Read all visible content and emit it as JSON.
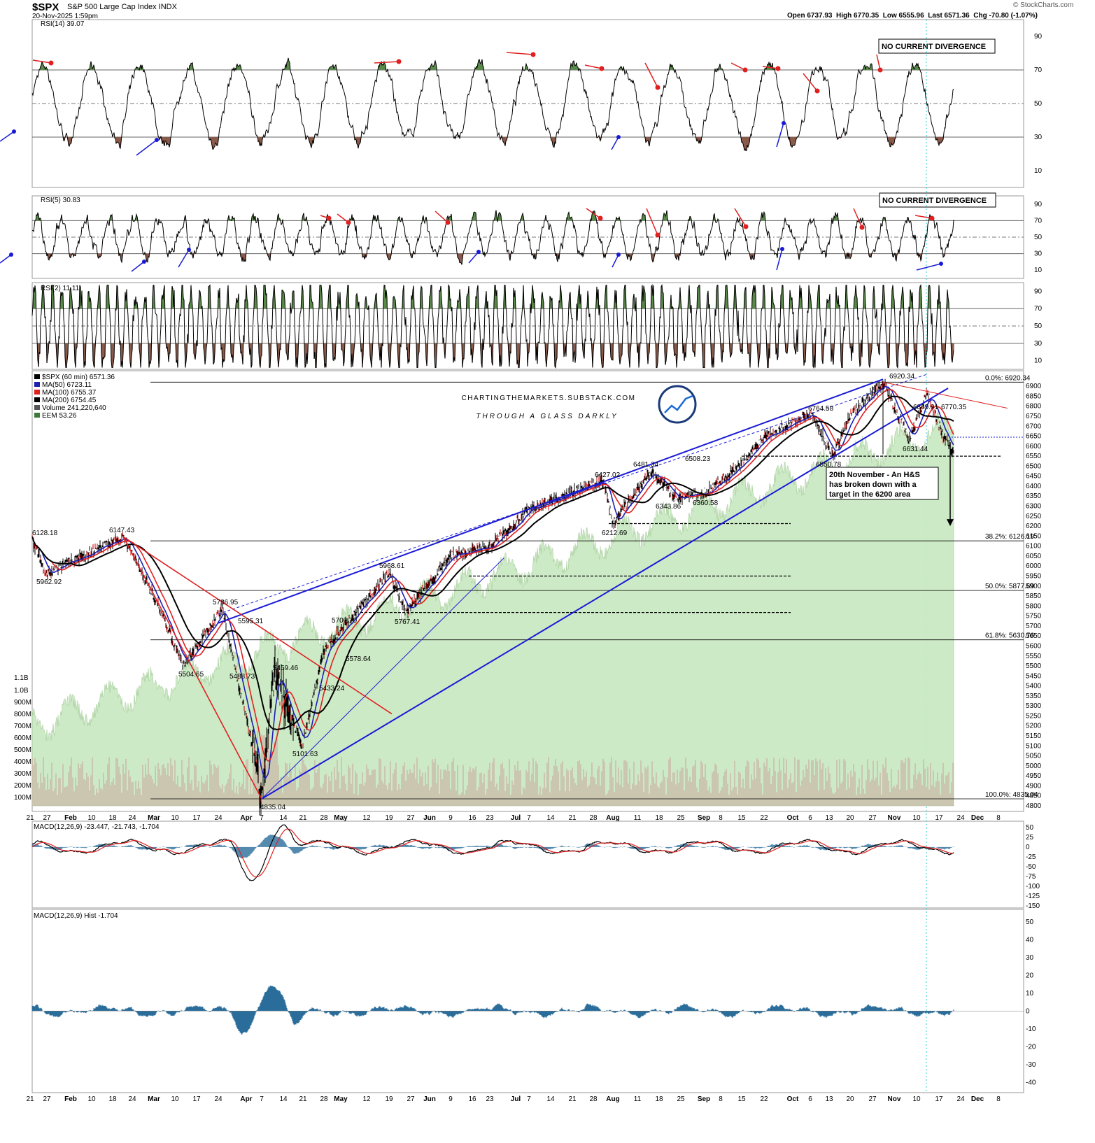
{
  "header": {
    "symbol": "$SPX",
    "name": "S&P 500 Large Cap Index INDX",
    "datetime": "20-Nov-2025 1:59pm",
    "ohlc": "Open 6737.93  High 6770.35  Low 6555.96  Last 6571.36  Chg -70.80 (-1.07%)",
    "credit": "© StockCharts.com"
  },
  "watermark": {
    "line1": "CHARTINGTHEMARKETS.SUBSTACK.COM",
    "line2": "THROUGH A GLASS DARKLY"
  },
  "colors": {
    "price": "#000000",
    "ma50": "#1f1fb4",
    "ma100": "#e02020",
    "ma200": "#000000",
    "volume": "#c8e8c0",
    "rsi_over": "#5a8a4a",
    "rsi_under": "#8a5a4a",
    "macd_hist": "#2a6d9a",
    "trend_blue": "#1a1ad6",
    "trend_red": "#e02020"
  },
  "x_labels": [
    "21",
    "27",
    "Feb",
    "10",
    "18",
    "24",
    "Mar",
    "10",
    "17",
    "24",
    "Apr",
    "7",
    "14",
    "21",
    "28",
    "May",
    "12",
    "19",
    "27",
    "Jun",
    "9",
    "16",
    "23",
    "Jul",
    "7",
    "14",
    "21",
    "28",
    "Aug",
    "11",
    "18",
    "25",
    "Sep",
    "8",
    "15",
    "22",
    "Oct",
    "6",
    "13",
    "20",
    "27",
    "Nov",
    "10",
    "17",
    "24",
    "Dec",
    "8"
  ],
  "panels": {
    "rsi14": {
      "label": "RSI(14) 39.07",
      "ticks": [
        90,
        70,
        50,
        30,
        10
      ],
      "note": "NO CURRENT DIVERGENCE"
    },
    "rsi5": {
      "label": "RSI(5) 30.83",
      "ticks": [
        90,
        70,
        50,
        30,
        10
      ],
      "note": "NO CURRENT DIVERGENCE"
    },
    "rsi2": {
      "label": "RSI(2) 11.11",
      "ticks": [
        90,
        70,
        50,
        30,
        10
      ]
    },
    "price": {
      "legend": [
        "$SPX (60 min) 6571.36",
        "MA(50) 6723.11",
        "MA(100) 6755.37",
        "MA(200) 6754.45",
        "Volume 241,220,640",
        "EEM 53.26"
      ],
      "ticks": [
        6900,
        6850,
        6800,
        6750,
        6700,
        6650,
        6600,
        6550,
        6500,
        6450,
        6400,
        6350,
        6300,
        6250,
        6200,
        6150,
        6100,
        6050,
        6000,
        5950,
        5900,
        5850,
        5800,
        5750,
        5700,
        5650,
        5600,
        5550,
        5500,
        5450,
        5400,
        5350,
        5300,
        5250,
        5200,
        5150,
        5100,
        5050,
        5000,
        4950,
        4900,
        4850,
        4800
      ],
      "vol_ticks": [
        "1.1B",
        "1.0B",
        "900M",
        "800M",
        "700M",
        "600M",
        "500M",
        "400M",
        "300M",
        "200M",
        "100M"
      ],
      "fib": [
        "0.0%: 6920.34",
        "38.2%: 6126.19",
        "50.0%: 5877.69",
        "61.8%: 5630.76",
        "100.0%: 4835.04"
      ],
      "annotation": [
        "20th November - An H&S",
        "has broken down with a",
        "target in the 6200 area"
      ]
    },
    "macd": {
      "label": "MACD(12,26,9) -23.447, -21.743, -1.704",
      "ticks": [
        50,
        25,
        0,
        -25,
        -50,
        -75,
        -100,
        -125,
        -150
      ]
    },
    "hist": {
      "label": "MACD(12,26,9) Hist -1.704",
      "ticks": [
        50,
        40,
        30,
        20,
        10,
        0,
        -10,
        -20,
        -30,
        -40
      ]
    }
  },
  "chart_data": [
    {
      "type": "line",
      "title": "$SPX (60 min) 6571.36",
      "x": [
        "Jan 21",
        "Jan 27",
        "Feb 18",
        "Mar 3",
        "Mar 10",
        "Mar 24",
        "Apr 4",
        "Apr 7",
        "Apr 9",
        "Apr 21",
        "Apr 28",
        "May 12",
        "May 27",
        "Jun 9",
        "Jun 23",
        "Jul 7",
        "Jul 28",
        "Aug 1",
        "Aug 11",
        "Aug 22",
        "Sep 2",
        "Sep 15",
        "Sep 22",
        "Oct 8",
        "Oct 10",
        "Oct 20",
        "Oct 29",
        "Nov 7",
        "Nov 13",
        "Nov 17",
        "Nov 20"
      ],
      "series": [
        {
          "name": "$SPX",
          "values": [
            6128.18,
            5962.92,
            6147.43,
            5850,
            5504.65,
            5786.95,
            5074,
            4835.04,
            5459.46,
            5101.63,
            5578.64,
            5968.61,
            5767.41,
            6050,
            6100,
            6280,
            6427.02,
            6212.69,
            6481.34,
            6343.86,
            6360.58,
            6508.23,
            6650,
            6764.58,
            6550.78,
            6750,
            6920.34,
            6631.44,
            6869.91,
            6650,
            6571.36
          ]
        }
      ],
      "labels": [
        "6128.18",
        "5962.92",
        "6147.43",
        "5504.65",
        "5786.95",
        "5595.31",
        "5488.73",
        "5459.46",
        "5433.24",
        "5101.63",
        "4835.04",
        "5700.70",
        "5578.64",
        "5968.61",
        "5767.41",
        "6427.02",
        "6212.69",
        "6481.34",
        "6343.86",
        "6508.23",
        "6360.58",
        "6764.58",
        "6550.78",
        "6920.34",
        "6869.91",
        "6631.44",
        "6770.35"
      ],
      "ylim": [
        4800,
        6950
      ]
    }
  ]
}
